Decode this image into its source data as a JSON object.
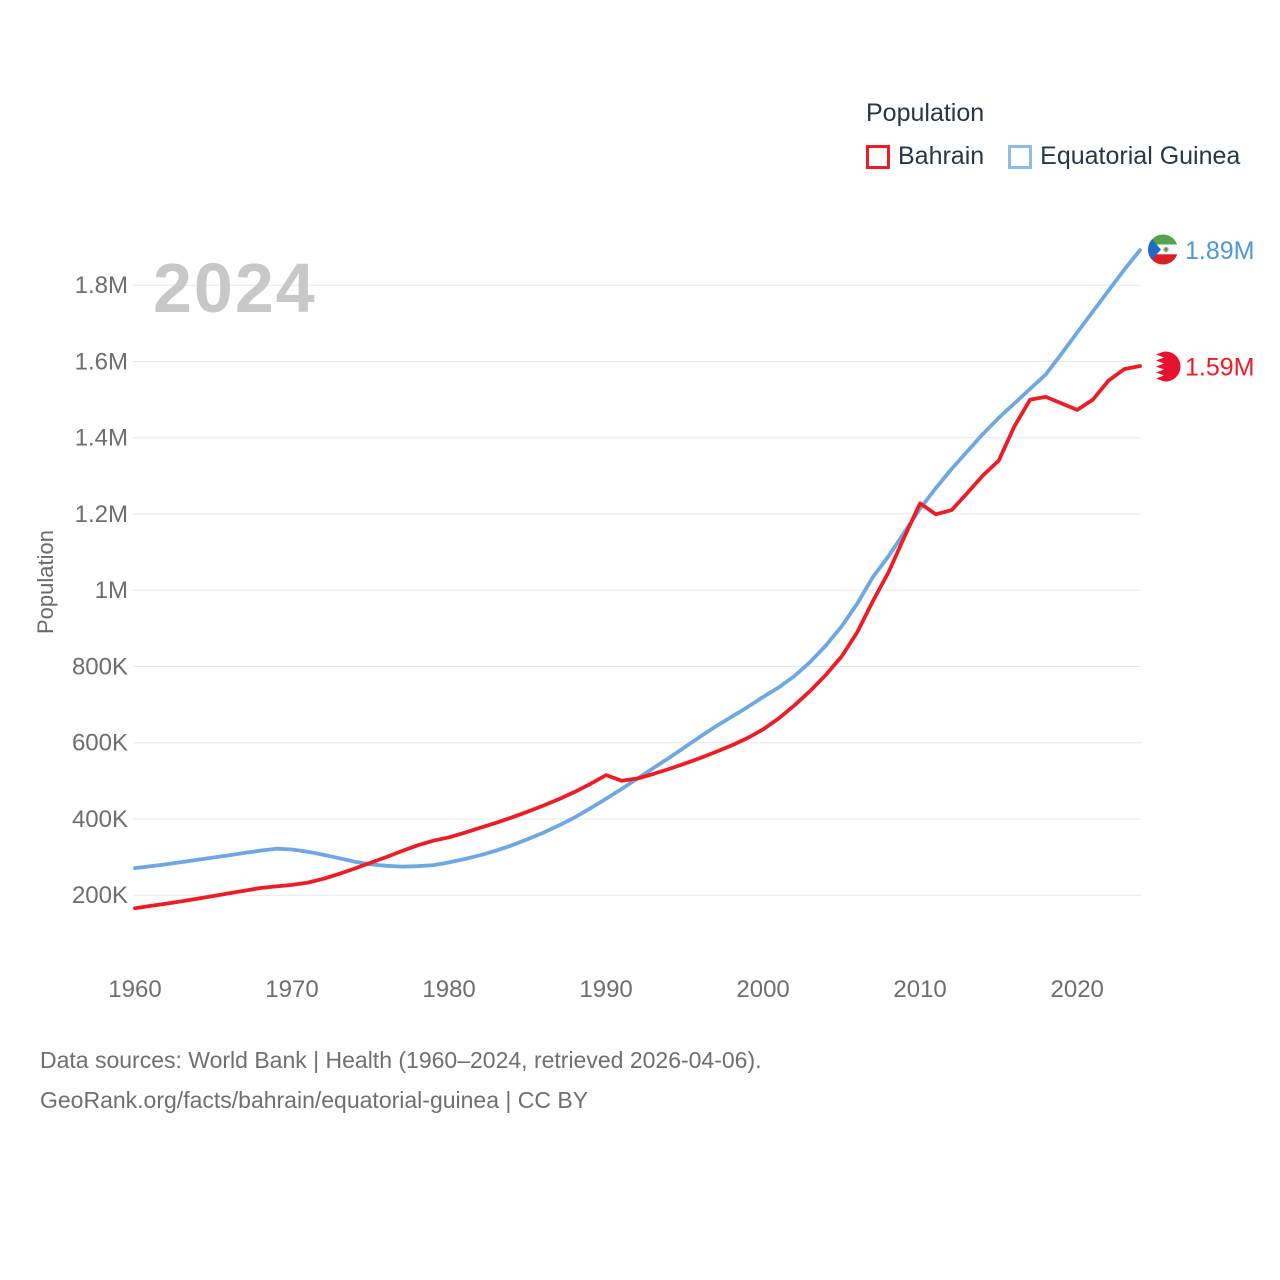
{
  "legend": {
    "title": "Population",
    "items": [
      {
        "label": "Bahrain",
        "color": "#ee1c25"
      },
      {
        "label": "Equatorial Guinea",
        "color": "#8cbcec"
      }
    ]
  },
  "watermark": "2024",
  "y_axis_title": "Population",
  "footer": {
    "line1": "Data sources: World Bank | Health (1960–2024, retrieved 2026-04-06).",
    "line2": "GeoRank.org/facts/bahrain/equatorial-guinea | CC BY"
  },
  "chart_data": {
    "type": "line",
    "title": "Population",
    "ylabel": "Population",
    "xlabel": "",
    "grid": true,
    "legend_position": "top-right",
    "year_annotation": "2024",
    "ylim": [
      100000,
      1950000
    ],
    "xticks": [
      1960,
      1970,
      1980,
      1990,
      2000,
      2010,
      2020
    ],
    "yticks": [
      {
        "label": "1.8M",
        "value": 1800000
      },
      {
        "label": "1.6M",
        "value": 1600000
      },
      {
        "label": "1.4M",
        "value": 1400000
      },
      {
        "label": "1.2M",
        "value": 1200000
      },
      {
        "label": "1M",
        "value": 1000000
      },
      {
        "label": "800K",
        "value": 800000
      },
      {
        "label": "600K",
        "value": 600000
      },
      {
        "label": "400K",
        "value": 400000
      },
      {
        "label": "200K",
        "value": 200000
      }
    ],
    "x": [
      1960,
      1961,
      1962,
      1963,
      1964,
      1965,
      1966,
      1967,
      1968,
      1969,
      1970,
      1971,
      1972,
      1973,
      1974,
      1975,
      1976,
      1977,
      1978,
      1979,
      1980,
      1981,
      1982,
      1983,
      1984,
      1985,
      1986,
      1987,
      1988,
      1989,
      1990,
      1991,
      1992,
      1993,
      1994,
      1995,
      1996,
      1997,
      1998,
      1999,
      2000,
      2001,
      2002,
      2003,
      2004,
      2005,
      2006,
      2007,
      2008,
      2009,
      2010,
      2011,
      2012,
      2013,
      2014,
      2015,
      2016,
      2017,
      2018,
      2019,
      2020,
      2021,
      2022,
      2023,
      2024
    ],
    "series": [
      {
        "name": "Bahrain",
        "color": "#ee1c25",
        "end_label": "1.59M",
        "end_value": 1588000,
        "values": [
          166000,
          172000,
          178000,
          184000,
          191000,
          198000,
          205000,
          212000,
          219000,
          223000,
          227000,
          233000,
          243000,
          256000,
          270000,
          285000,
          300000,
          316000,
          331000,
          343000,
          352000,
          364000,
          377000,
          390000,
          404000,
          419000,
          435000,
          452000,
          471000,
          492000,
          515000,
          500000,
          506000,
          518000,
          531000,
          545000,
          560000,
          576000,
          593000,
          612000,
          635000,
          664000,
          698000,
          736000,
          778000,
          826000,
          890000,
          972000,
          1048000,
          1140000,
          1228000,
          1199000,
          1210000,
          1255000,
          1301000,
          1340000,
          1430000,
          1500000,
          1507000,
          1490000,
          1473000,
          1500000,
          1550000,
          1580000,
          1588000
        ]
      },
      {
        "name": "Equatorial Guinea",
        "color": "#6ea8e4",
        "end_label": "1.89M",
        "end_value": 1892000,
        "values": [
          271000,
          276000,
          281000,
          287000,
          293000,
          299000,
          305000,
          311000,
          317000,
          322000,
          320000,
          314000,
          306000,
          297000,
          288000,
          281000,
          277000,
          275000,
          276000,
          279000,
          286000,
          295000,
          305000,
          317000,
          331000,
          347000,
          364000,
          383000,
          404000,
          428000,
          453000,
          479000,
          506000,
          533000,
          560000,
          588000,
          616000,
          643000,
          668000,
          693000,
          720000,
          745000,
          775000,
          812000,
          855000,
          905000,
          965000,
          1035000,
          1090000,
          1152000,
          1214000,
          1268000,
          1318000,
          1364000,
          1410000,
          1452000,
          1490000,
          1528000,
          1566000,
          1620000,
          1676000,
          1731000,
          1786000,
          1841000,
          1892000
        ]
      }
    ]
  }
}
